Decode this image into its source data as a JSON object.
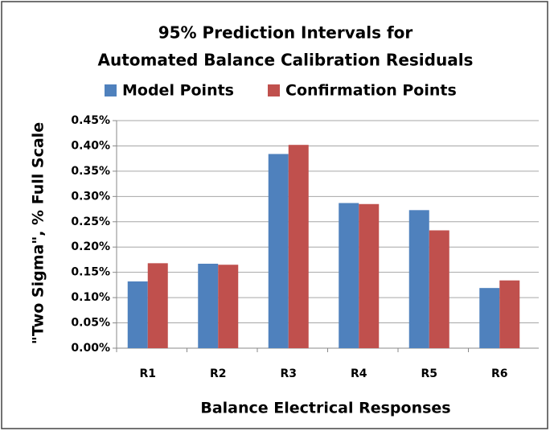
{
  "chart_data": {
    "type": "bar",
    "title": [
      "95% Prediction Intervals for",
      "Automated Balance Calibration Residuals"
    ],
    "x_label": "Balance Electrical Responses",
    "y_label": "\"Two Sigma\", % Full Scale",
    "categories": [
      "R1",
      "R2",
      "R3",
      "R4",
      "R5",
      "R6"
    ],
    "series": [
      {
        "name": "Model Points",
        "color": "#4f81bd",
        "values": [
          0.132,
          0.167,
          0.384,
          0.287,
          0.273,
          0.119
        ]
      },
      {
        "name": "Confirmation Points",
        "color": "#c0504d",
        "values": [
          0.168,
          0.165,
          0.402,
          0.285,
          0.233,
          0.134
        ]
      }
    ],
    "ylim": [
      0,
      0.45
    ],
    "yticks": [
      {
        "value": 0,
        "label": "0.00%"
      },
      {
        "value": 0.05,
        "label": "0.05%"
      },
      {
        "value": 0.1,
        "label": "0.10%"
      },
      {
        "value": 0.15,
        "label": "0.15%"
      },
      {
        "value": 0.2,
        "label": "0.20%"
      },
      {
        "value": 0.25,
        "label": "0.25%"
      },
      {
        "value": 0.3,
        "label": "0.30%"
      },
      {
        "value": 0.35,
        "label": "0.35%"
      },
      {
        "value": 0.4,
        "label": "0.40%"
      },
      {
        "value": 0.45,
        "label": "0.45%"
      }
    ],
    "grid": true,
    "legend": "top"
  }
}
